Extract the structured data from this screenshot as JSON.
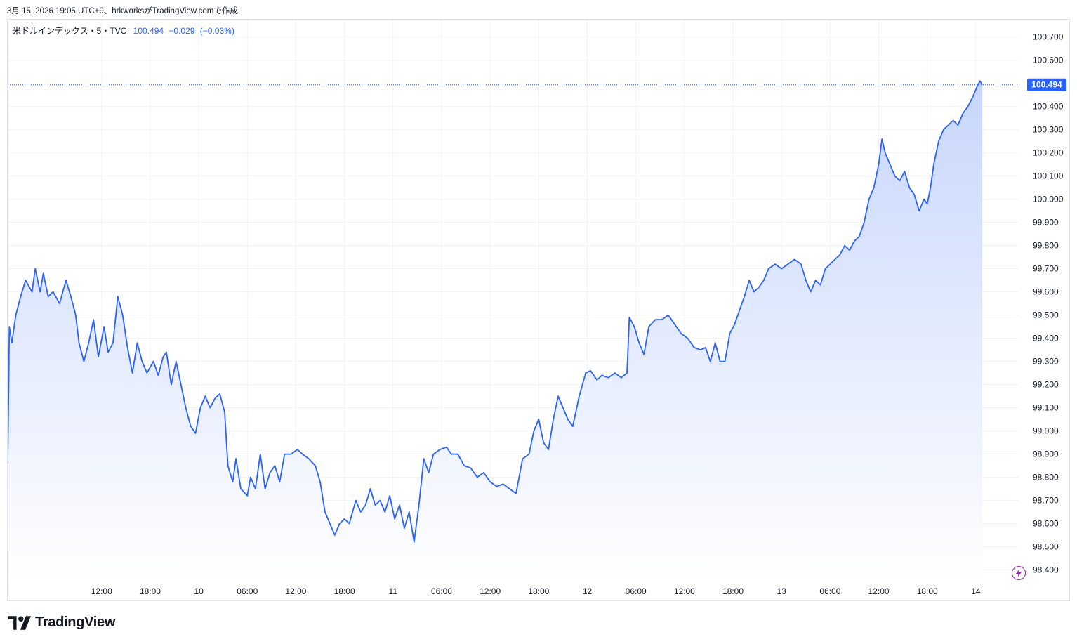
{
  "caption": "3月 15, 2026 19:05 UTC+9、hrkworksがTradingView.comで作成",
  "legend": {
    "symbol": "米ドルインデックス・5・TVC",
    "last": "100.494",
    "change": "−0.029",
    "change_pct": "(−0.03%)"
  },
  "brand": "TradingView",
  "icons": {
    "logo": "tradingview-logo-icon",
    "bolt": "lightning-bolt-icon"
  },
  "colors": {
    "line": "#2962ff",
    "area_top": "#c7d6fb",
    "area_bottom": "#ffffff",
    "last_label_bg": "#2962ff",
    "grid": "#f0f3fa",
    "bolt": "#9c27b0"
  },
  "chart_data": {
    "type": "area",
    "symbol": "DXY",
    "timeframe": "5",
    "last_value": 100.494,
    "ylim": [
      98.35,
      100.775
    ],
    "yticks": [
      100.7,
      100.6,
      100.4,
      100.3,
      100.2,
      100.1,
      100.0,
      99.9,
      99.8,
      99.7,
      99.6,
      99.5,
      99.4,
      99.3,
      99.2,
      99.1,
      99.0,
      98.9,
      98.8,
      98.7,
      98.6,
      98.5,
      98.4
    ],
    "ytick_labels": [
      "100.700",
      "100.600",
      "100.400",
      "100.300",
      "100.200",
      "100.100",
      "100.000",
      "99.900",
      "99.800",
      "99.700",
      "99.600",
      "99.500",
      "99.400",
      "99.300",
      "99.200",
      "99.100",
      "99.000",
      "98.900",
      "98.800",
      "98.700",
      "98.600",
      "98.500",
      "98.400"
    ],
    "xlim_hours": [
      -5.6,
      119.3
    ],
    "xticks": [
      {
        "h": 6,
        "label": "12:00"
      },
      {
        "h": 12,
        "label": "18:00"
      },
      {
        "h": 18,
        "label": "10"
      },
      {
        "h": 24,
        "label": "06:00"
      },
      {
        "h": 30,
        "label": "12:00"
      },
      {
        "h": 36,
        "label": "18:00"
      },
      {
        "h": 42,
        "label": "11"
      },
      {
        "h": 48,
        "label": "06:00"
      },
      {
        "h": 54,
        "label": "12:00"
      },
      {
        "h": 60,
        "label": "18:00"
      },
      {
        "h": 66,
        "label": "12"
      },
      {
        "h": 72,
        "label": "06:00"
      },
      {
        "h": 78,
        "label": "12:00"
      },
      {
        "h": 84,
        "label": "18:00"
      },
      {
        "h": 90,
        "label": "13"
      },
      {
        "h": 96,
        "label": "06:00"
      },
      {
        "h": 102,
        "label": "12:00"
      },
      {
        "h": 108,
        "label": "18:00"
      },
      {
        "h": 114,
        "label": "14"
      }
    ],
    "series": [
      {
        "values": [
          [
            -5.6,
            98.86
          ],
          [
            -5.4,
            99.45
          ],
          [
            -5.1,
            99.38
          ],
          [
            -4.6,
            99.5
          ],
          [
            -4.0,
            99.58
          ],
          [
            -3.4,
            99.65
          ],
          [
            -2.6,
            99.6
          ],
          [
            -2.2,
            99.7
          ],
          [
            -1.6,
            99.6
          ],
          [
            -1.2,
            99.68
          ],
          [
            -0.6,
            99.58
          ],
          [
            0.0,
            99.6
          ],
          [
            0.8,
            99.55
          ],
          [
            1.6,
            99.65
          ],
          [
            2.2,
            99.58
          ],
          [
            2.8,
            99.5
          ],
          [
            3.2,
            99.38
          ],
          [
            3.8,
            99.3
          ],
          [
            4.4,
            99.38
          ],
          [
            5.0,
            99.48
          ],
          [
            5.6,
            99.32
          ],
          [
            6.3,
            99.45
          ],
          [
            6.8,
            99.34
          ],
          [
            7.4,
            99.38
          ],
          [
            8.0,
            99.58
          ],
          [
            8.6,
            99.5
          ],
          [
            9.2,
            99.36
          ],
          [
            9.8,
            99.25
          ],
          [
            10.4,
            99.38
          ],
          [
            11.0,
            99.3
          ],
          [
            11.6,
            99.25
          ],
          [
            12.4,
            99.3
          ],
          [
            13.0,
            99.24
          ],
          [
            13.6,
            99.32
          ],
          [
            14.0,
            99.34
          ],
          [
            14.6,
            99.2
          ],
          [
            15.2,
            99.3
          ],
          [
            15.8,
            99.2
          ],
          [
            16.4,
            99.1
          ],
          [
            17.0,
            99.02
          ],
          [
            17.6,
            98.99
          ],
          [
            18.2,
            99.1
          ],
          [
            18.8,
            99.15
          ],
          [
            19.4,
            99.1
          ],
          [
            20.0,
            99.14
          ],
          [
            20.6,
            99.16
          ],
          [
            21.2,
            99.08
          ],
          [
            21.6,
            98.85
          ],
          [
            22.2,
            98.78
          ],
          [
            22.6,
            98.88
          ],
          [
            23.2,
            98.75
          ],
          [
            24.0,
            98.72
          ],
          [
            24.4,
            98.8
          ],
          [
            25.0,
            98.75
          ],
          [
            25.6,
            98.9
          ],
          [
            26.2,
            98.75
          ],
          [
            26.8,
            98.82
          ],
          [
            27.4,
            98.85
          ],
          [
            28.0,
            98.78
          ],
          [
            28.6,
            98.9
          ],
          [
            29.4,
            98.9
          ],
          [
            30.2,
            98.92
          ],
          [
            30.8,
            98.9
          ],
          [
            31.6,
            98.88
          ],
          [
            32.4,
            98.85
          ],
          [
            33.0,
            98.78
          ],
          [
            33.6,
            98.65
          ],
          [
            34.2,
            98.6
          ],
          [
            34.8,
            98.55
          ],
          [
            35.4,
            98.6
          ],
          [
            36.0,
            98.62
          ],
          [
            36.6,
            98.6
          ],
          [
            37.4,
            98.7
          ],
          [
            38.0,
            98.65
          ],
          [
            38.6,
            98.68
          ],
          [
            39.2,
            98.75
          ],
          [
            39.8,
            98.68
          ],
          [
            40.4,
            98.7
          ],
          [
            41.0,
            98.65
          ],
          [
            41.6,
            98.72
          ],
          [
            42.2,
            98.62
          ],
          [
            42.8,
            98.68
          ],
          [
            43.4,
            98.58
          ],
          [
            44.0,
            98.65
          ],
          [
            44.6,
            98.52
          ],
          [
            45.2,
            98.68
          ],
          [
            45.8,
            98.88
          ],
          [
            46.4,
            98.82
          ],
          [
            47.0,
            98.9
          ],
          [
            47.8,
            98.92
          ],
          [
            48.6,
            98.93
          ],
          [
            49.2,
            98.9
          ],
          [
            50.0,
            98.9
          ],
          [
            50.8,
            98.85
          ],
          [
            51.6,
            98.84
          ],
          [
            52.4,
            98.8
          ],
          [
            53.2,
            98.82
          ],
          [
            54.0,
            98.78
          ],
          [
            54.8,
            98.76
          ],
          [
            55.6,
            98.77
          ],
          [
            56.4,
            98.75
          ],
          [
            57.2,
            98.73
          ],
          [
            58.0,
            98.88
          ],
          [
            58.8,
            98.9
          ],
          [
            59.4,
            99.0
          ],
          [
            60.0,
            99.05
          ],
          [
            60.6,
            98.95
          ],
          [
            61.2,
            98.92
          ],
          [
            61.8,
            99.05
          ],
          [
            62.4,
            99.15
          ],
          [
            63.0,
            99.1
          ],
          [
            63.6,
            99.05
          ],
          [
            64.2,
            99.02
          ],
          [
            65.0,
            99.15
          ],
          [
            65.8,
            99.25
          ],
          [
            66.4,
            99.26
          ],
          [
            67.2,
            99.22
          ],
          [
            67.8,
            99.24
          ],
          [
            68.6,
            99.23
          ],
          [
            69.4,
            99.25
          ],
          [
            70.2,
            99.23
          ],
          [
            70.9,
            99.25
          ],
          [
            71.2,
            99.49
          ],
          [
            71.8,
            99.45
          ],
          [
            72.4,
            99.38
          ],
          [
            73.0,
            99.33
          ],
          [
            73.6,
            99.45
          ],
          [
            74.4,
            99.48
          ],
          [
            75.2,
            99.48
          ],
          [
            76.0,
            99.5
          ],
          [
            76.8,
            99.46
          ],
          [
            77.6,
            99.42
          ],
          [
            78.4,
            99.4
          ],
          [
            79.2,
            99.36
          ],
          [
            80.0,
            99.35
          ],
          [
            80.6,
            99.36
          ],
          [
            81.2,
            99.3
          ],
          [
            81.8,
            99.38
          ],
          [
            82.4,
            99.3
          ],
          [
            83.0,
            99.3
          ],
          [
            83.6,
            99.42
          ],
          [
            84.2,
            99.46
          ],
          [
            84.8,
            99.52
          ],
          [
            85.4,
            99.58
          ],
          [
            86.0,
            99.65
          ],
          [
            86.6,
            99.6
          ],
          [
            87.2,
            99.62
          ],
          [
            87.8,
            99.65
          ],
          [
            88.4,
            99.7
          ],
          [
            89.2,
            99.72
          ],
          [
            90.0,
            99.7
          ],
          [
            90.8,
            99.72
          ],
          [
            91.6,
            99.74
          ],
          [
            92.4,
            99.72
          ],
          [
            93.0,
            99.65
          ],
          [
            93.6,
            99.6
          ],
          [
            94.2,
            99.65
          ],
          [
            94.8,
            99.63
          ],
          [
            95.4,
            99.7
          ],
          [
            96.0,
            99.72
          ],
          [
            96.6,
            99.74
          ],
          [
            97.2,
            99.76
          ],
          [
            97.8,
            99.8
          ],
          [
            98.4,
            99.78
          ],
          [
            99.0,
            99.82
          ],
          [
            99.6,
            99.84
          ],
          [
            100.2,
            99.9
          ],
          [
            100.8,
            100.0
          ],
          [
            101.4,
            100.05
          ],
          [
            102.0,
            100.15
          ],
          [
            102.4,
            100.26
          ],
          [
            102.8,
            100.2
          ],
          [
            103.4,
            100.15
          ],
          [
            104.0,
            100.1
          ],
          [
            104.6,
            100.08
          ],
          [
            105.2,
            100.12
          ],
          [
            105.8,
            100.05
          ],
          [
            106.4,
            100.02
          ],
          [
            107.0,
            99.95
          ],
          [
            107.6,
            100.0
          ],
          [
            108.0,
            99.98
          ],
          [
            108.4,
            100.05
          ],
          [
            108.8,
            100.15
          ],
          [
            109.4,
            100.25
          ],
          [
            110.0,
            100.3
          ],
          [
            110.6,
            100.32
          ],
          [
            111.2,
            100.34
          ],
          [
            111.8,
            100.32
          ],
          [
            112.4,
            100.37
          ],
          [
            113.0,
            100.4
          ],
          [
            113.6,
            100.44
          ],
          [
            114.2,
            100.49
          ],
          [
            114.5,
            100.51
          ],
          [
            114.8,
            100.494
          ]
        ]
      }
    ]
  }
}
